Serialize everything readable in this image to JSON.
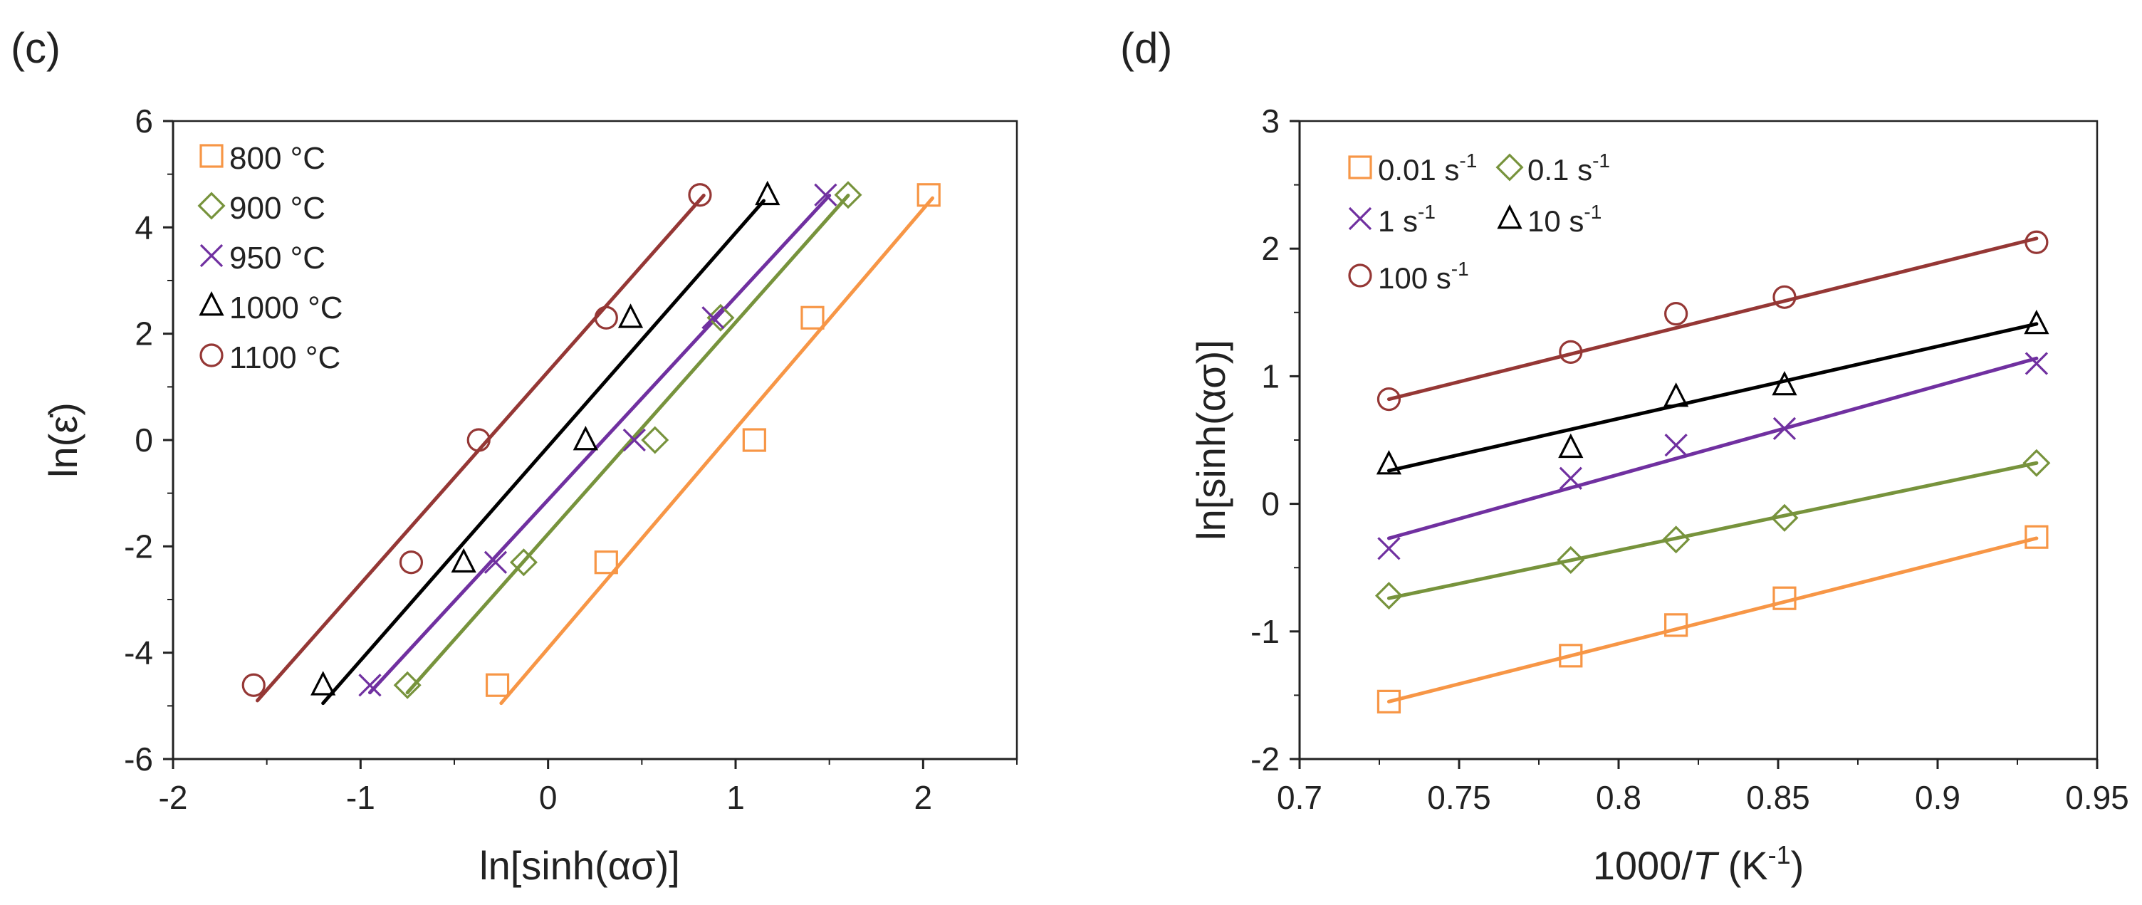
{
  "chart_data": [
    {
      "panel_label": "(c)",
      "type": "scatter",
      "title": "",
      "xlabel": "ln[sinh(ασ)]",
      "ylabel": "ln(ε̇)",
      "xlim": [
        -2,
        2.5
      ],
      "ylim": [
        -6,
        6
      ],
      "xticks": [
        -2,
        -1,
        0,
        1,
        2
      ],
      "yticks": [
        -6,
        -4,
        -2,
        0,
        2,
        4,
        6
      ],
      "grid": false,
      "legend_position": "top-left",
      "legend_columns": 1,
      "series": [
        {
          "name": "800 °C",
          "marker": "square",
          "color": "#F79646",
          "x": [
            -0.27,
            0.31,
            1.1,
            1.41,
            2.03
          ],
          "y": [
            -4.61,
            -2.3,
            0.0,
            2.3,
            4.61
          ],
          "fit": {
            "x": [
              -0.25,
              2.05
            ],
            "y": [
              -4.95,
              4.55
            ]
          }
        },
        {
          "name": "900 °C",
          "marker": "diamond",
          "color": "#77933C",
          "x": [
            -0.75,
            -0.13,
            0.57,
            0.92,
            1.6
          ],
          "y": [
            -4.61,
            -2.3,
            0.0,
            2.3,
            4.61
          ],
          "fit": {
            "x": [
              -0.75,
              1.6
            ],
            "y": [
              -4.75,
              4.6
            ]
          }
        },
        {
          "name": "950 °C",
          "marker": "x",
          "color": "#7030A0",
          "x": [
            -0.95,
            -0.28,
            0.46,
            0.88,
            1.48
          ],
          "y": [
            -4.61,
            -2.3,
            0.0,
            2.3,
            4.61
          ],
          "fit": {
            "x": [
              -0.95,
              1.5
            ],
            "y": [
              -4.75,
              4.6
            ]
          }
        },
        {
          "name": "1000 °C",
          "marker": "triangle",
          "color": "#000000",
          "x": [
            -1.2,
            -0.45,
            0.2,
            0.44,
            1.17
          ],
          "y": [
            -4.61,
            -2.3,
            0.0,
            2.3,
            4.61
          ],
          "fit": {
            "x": [
              -1.2,
              1.15
            ],
            "y": [
              -4.95,
              4.5
            ]
          }
        },
        {
          "name": "1100 °C",
          "marker": "circle",
          "color": "#953735",
          "x": [
            -1.57,
            -0.73,
            -0.37,
            0.31,
            0.81
          ],
          "y": [
            -4.61,
            -2.3,
            0.0,
            2.3,
            4.61
          ],
          "fit": {
            "x": [
              -1.55,
              0.83
            ],
            "y": [
              -4.9,
              4.6
            ]
          }
        }
      ]
    },
    {
      "panel_label": "(d)",
      "type": "scatter",
      "title": "",
      "xlabel_pre": "1000/",
      "xlabel_var": "T",
      "xlabel_post": " (K",
      "xlabel_sup": "-1",
      "xlabel_end": ")",
      "ylabel": "ln[sinh(ασ)]",
      "xlim": [
        0.7,
        0.95
      ],
      "ylim": [
        -2,
        3
      ],
      "xticks": [
        0.7,
        0.75,
        0.8,
        0.85,
        0.9,
        0.95
      ],
      "yticks": [
        -2,
        -1,
        0,
        1,
        2,
        3
      ],
      "grid": false,
      "legend_position": "top-left",
      "legend_columns": 2,
      "unit_base": "s",
      "unit_exp": "-1",
      "series": [
        {
          "name": "0.01",
          "marker": "square",
          "color": "#F79646",
          "x": [
            0.728,
            0.785,
            0.818,
            0.852,
            0.931
          ],
          "y": [
            -1.55,
            -1.19,
            -0.95,
            -0.74,
            -0.26
          ],
          "fit": {
            "x": [
              0.728,
              0.931
            ],
            "y": [
              -1.55,
              -0.27
            ]
          }
        },
        {
          "name": "0.1",
          "marker": "diamond",
          "color": "#77933C",
          "x": [
            0.728,
            0.785,
            0.818,
            0.852,
            0.931
          ],
          "y": [
            -0.72,
            -0.44,
            -0.28,
            -0.11,
            0.32
          ],
          "fit": {
            "x": [
              0.728,
              0.931
            ],
            "y": [
              -0.74,
              0.32
            ]
          }
        },
        {
          "name": "1",
          "marker": "x",
          "color": "#7030A0",
          "x": [
            0.728,
            0.785,
            0.818,
            0.852,
            0.931
          ],
          "y": [
            -0.35,
            0.2,
            0.46,
            0.59,
            1.1
          ],
          "fit": {
            "x": [
              0.728,
              0.931
            ],
            "y": [
              -0.27,
              1.14
            ]
          }
        },
        {
          "name": "10",
          "marker": "triangle",
          "color": "#000000",
          "x": [
            0.728,
            0.785,
            0.818,
            0.852,
            0.931
          ],
          "y": [
            0.31,
            0.44,
            0.84,
            0.93,
            1.41
          ],
          "fit": {
            "x": [
              0.728,
              0.931
            ],
            "y": [
              0.26,
              1.41
            ]
          }
        },
        {
          "name": "100",
          "marker": "circle",
          "color": "#953735",
          "x": [
            0.728,
            0.785,
            0.818,
            0.852,
            0.931
          ],
          "y": [
            0.82,
            1.19,
            1.49,
            1.62,
            2.05
          ],
          "fit": {
            "x": [
              0.728,
              0.931
            ],
            "y": [
              0.82,
              2.08
            ]
          }
        }
      ]
    }
  ]
}
